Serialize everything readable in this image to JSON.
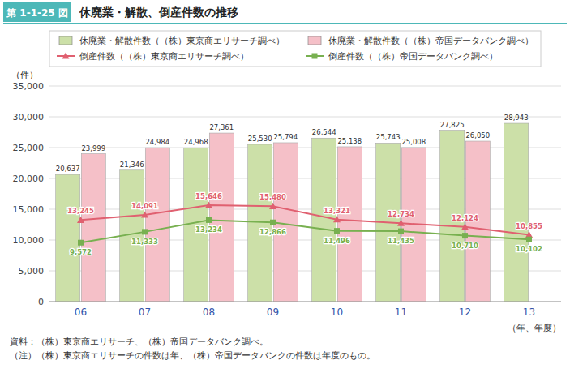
{
  "chart_data": {
    "type": "bar",
    "title": "休廃業・解散、倒産件数の推移",
    "annotations": [
      "第 1-1-25 図",
      "資料：（株）東京商エリサーチ、（株）帝国データバンク調べ。",
      "（注）（株）東京商エリサーチの件数は年、（株）帝国データバンクの件数は年度のもの。"
    ],
    "x_label": "（年、年度）",
    "y_label": "（件）",
    "categories": [
      "06",
      "07",
      "08",
      "09",
      "10",
      "11",
      "12",
      "13"
    ],
    "series": [
      {
        "name": "休廃業・解散件数（（株）東京商エリサーチ調べ）",
        "type": "bar",
        "color": "#cce0a8",
        "values": [
          20637,
          21346,
          24968,
          25530,
          26544,
          25743,
          27825,
          28943
        ],
        "value_labels": [
          "20,637",
          "21,346",
          "24,968",
          "25,530",
          "26,544",
          "25,743",
          "27,825",
          "28,943"
        ]
      },
      {
        "name": "休廃業・解散件数（（株）帝国データバンク調べ）",
        "type": "bar",
        "color": "#f5c0c8",
        "values": [
          23999,
          24984,
          27361,
          25794,
          25138,
          25008,
          26050,
          null
        ],
        "value_labels": [
          "23,999",
          "24,984",
          "27,361",
          "25,794",
          "25,138",
          "25,008",
          "26,050",
          null
        ]
      },
      {
        "name": "倒産件数（（株）東京商エリサーチ調べ）",
        "type": "line",
        "color": "#e06070",
        "marker": "triangle",
        "values": [
          13245,
          14091,
          15646,
          15480,
          13321,
          12734,
          12124,
          10855
        ],
        "value_labels": [
          "13,245",
          "14,091",
          "15,646",
          "15,480",
          "13,321",
          "12,734",
          "12,124",
          "10,855"
        ]
      },
      {
        "name": "倒産件数（（株）帝国データバンク調べ）",
        "type": "line",
        "color": "#78b050",
        "marker": "square",
        "values": [
          9572,
          11333,
          13234,
          12866,
          11496,
          11435,
          10710,
          10102
        ],
        "value_labels": [
          "9,572",
          "11,333",
          "13,234",
          "12,866",
          "11,496",
          "11,435",
          "10,710",
          "10,102"
        ]
      }
    ],
    "ylim": [
      0,
      35000
    ],
    "yticks": [
      0,
      {
        "value": 5000,
        "label": "5,000"
      },
      {
        "value": 10000,
        "label": "10,000"
      },
      {
        "value": 15000,
        "label": "15,000"
      },
      {
        "value": 20000,
        "label": "20,000"
      },
      {
        "value": 25000,
        "label": "25,000"
      },
      {
        "value": 30000,
        "label": "30,000"
      },
      {
        "value": 35000,
        "label": "35,000"
      }
    ],
    "grid": true,
    "legend": "top",
    "data_labels": true
  }
}
